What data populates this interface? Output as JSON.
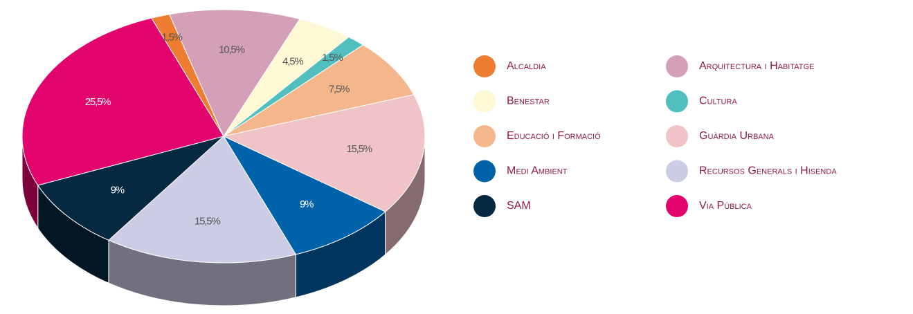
{
  "chart_data": {
    "type": "pie",
    "categories": [
      "Alcaldia",
      "Arquitectura i Habitatge",
      "Benestar",
      "Cultura",
      "Educació i Formació",
      "Guàrdia Urbana",
      "Medi Ambient",
      "Recursos Generals i Hisenda",
      "SAM",
      "Via Pública"
    ],
    "values": [
      1.5,
      10.5,
      4.5,
      1.5,
      7.5,
      15.5,
      9,
      15.5,
      9,
      25.5
    ],
    "value_labels": [
      "1,5%",
      "10,5%",
      "4,5%",
      "1,5%",
      "7,5%",
      "15,5%",
      "9%",
      "15,5%",
      "9%",
      "25,5%"
    ],
    "colors": [
      "#ee7d31",
      "#d4a0b8",
      "#fff8d4",
      "#52bfbf",
      "#f4b68b",
      "#f0c3c6",
      "#0063a9",
      "#cccce5",
      "#062840",
      "#e3036c"
    ],
    "legend": "right"
  }
}
